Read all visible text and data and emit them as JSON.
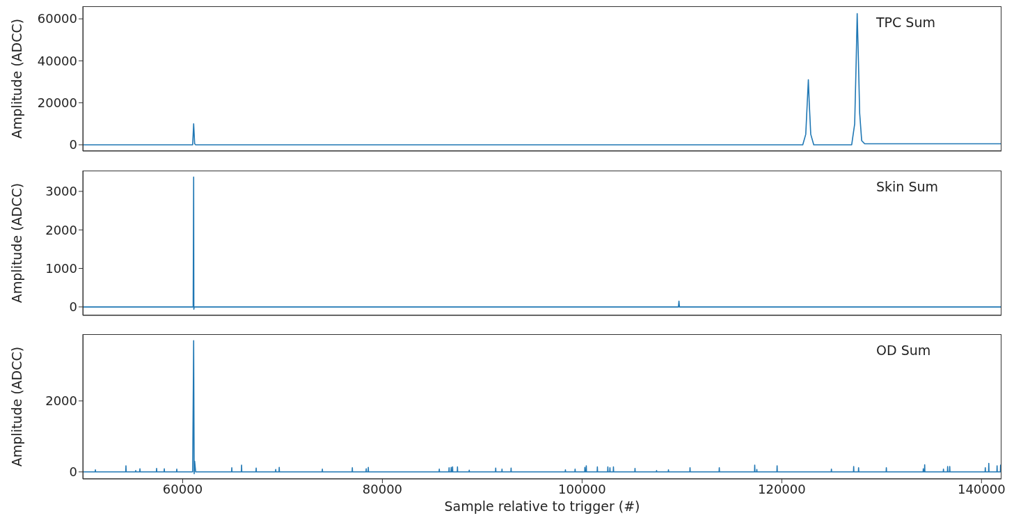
{
  "chart_data": [
    {
      "type": "line",
      "ylabel": "Amplitude (ADCC)",
      "annotations": [
        "TPC Sum"
      ],
      "tick_labels": "y",
      "xlim": [
        50000,
        142000
      ],
      "xticks": [
        60000,
        80000,
        100000,
        120000,
        140000
      ],
      "ylim": [
        -3000,
        66000
      ],
      "yticks": [
        0,
        20000,
        40000,
        60000
      ],
      "grid": false,
      "legend": false,
      "x": [
        50000,
        61000,
        61100,
        61200,
        61300,
        122100,
        122400,
        122550,
        122660,
        122750,
        122900,
        123200,
        127000,
        127300,
        127450,
        127550,
        127650,
        127800,
        128000,
        128300,
        132000,
        136000,
        142000
      ],
      "series": [
        {
          "color": "#1f77b4",
          "values": [
            0,
            0,
            10000,
            500,
            0,
            0,
            5000,
            20000,
            31000,
            20000,
            5000,
            0,
            0,
            10000,
            40000,
            62500,
            45000,
            15000,
            2000,
            500,
            500,
            500,
            500
          ]
        }
      ]
    },
    {
      "type": "line",
      "ylabel": "Amplitude (ADCC)",
      "annotations": [
        "Skin Sum"
      ],
      "tick_labels": "y",
      "xlim": [
        50000,
        142000
      ],
      "xticks": [
        60000,
        80000,
        100000,
        120000,
        140000
      ],
      "ylim": [
        -220,
        3540
      ],
      "yticks": [
        0,
        1000,
        2000,
        3000
      ],
      "grid": false,
      "legend": false,
      "x": [
        50000,
        61050,
        61100,
        61120,
        61150,
        109650,
        109700,
        109750,
        142000
      ],
      "series": [
        {
          "color": "#1f77b4",
          "values": [
            0,
            0,
            3370,
            -60,
            0,
            0,
            150,
            0,
            0
          ]
        }
      ]
    },
    {
      "type": "line",
      "ylabel": "Amplitude (ADCC)",
      "xlabel": "Sample relative to trigger (#)",
      "annotations": [
        "OD Sum"
      ],
      "xlim": [
        50000,
        142000
      ],
      "xticks": [
        60000,
        80000,
        100000,
        120000,
        140000
      ],
      "ylim": [
        -200,
        3880
      ],
      "yticks": [
        0,
        2000
      ],
      "grid": false,
      "legend": false,
      "x": [
        50000,
        51240,
        51260,
        51280,
        54300,
        54320,
        54340,
        55280,
        55300,
        55320,
        55700,
        55720,
        55740,
        57370,
        57390,
        57410,
        58140,
        58160,
        58180,
        59390,
        59410,
        59430,
        61000,
        61100,
        61150,
        61200,
        61300,
        64900,
        64920,
        64940,
        65880,
        65900,
        65920,
        67340,
        67360,
        67380,
        69300,
        69320,
        69340,
        69650,
        69670,
        69690,
        73970,
        73990,
        74010,
        76970,
        76990,
        77010,
        78360,
        78380,
        78400,
        78570,
        78590,
        78610,
        85680,
        85700,
        85720,
        86660,
        86680,
        86700,
        86870,
        86890,
        86910,
        87010,
        87030,
        87050,
        87500,
        87520,
        87540,
        88680,
        88700,
        88720,
        91330,
        91350,
        91370,
        91960,
        91980,
        92000,
        92870,
        92890,
        92910,
        98310,
        98330,
        98350,
        99280,
        99300,
        99320,
        100260,
        100280,
        100300,
        100400,
        100420,
        100440,
        101510,
        101530,
        101550,
        102560,
        102580,
        102600,
        102770,
        102790,
        102810,
        103120,
        103140,
        103160,
        105280,
        105300,
        105320,
        107440,
        107460,
        107480,
        108630,
        108650,
        108670,
        110790,
        110810,
        110830,
        113720,
        113740,
        113760,
        117270,
        117290,
        117310,
        117480,
        117500,
        117520,
        119510,
        119530,
        119550,
        124950,
        124970,
        124990,
        127180,
        127200,
        127220,
        127670,
        127690,
        127710,
        130450,
        130470,
        130490,
        134150,
        134170,
        134190,
        134290,
        134310,
        134330,
        136170,
        136190,
        136210,
        136590,
        136610,
        136630,
        136800,
        136820,
        136840,
        140360,
        140380,
        140400,
        140710,
        140730,
        140750,
        141540,
        141560,
        141580,
        141890,
        141910,
        141930,
        142000
      ],
      "series": [
        {
          "color": "#1f77b4",
          "values": [
            0,
            0,
            60,
            0,
            0,
            170,
            0,
            0,
            40,
            0,
            0,
            90,
            0,
            0,
            100,
            0,
            0,
            90,
            0,
            0,
            80,
            0,
            0,
            3700,
            -50,
            300,
            0,
            0,
            120,
            0,
            0,
            190,
            0,
            0,
            110,
            0,
            0,
            70,
            0,
            0,
            130,
            0,
            0,
            80,
            0,
            0,
            120,
            0,
            0,
            90,
            0,
            0,
            130,
            0,
            0,
            80,
            0,
            0,
            120,
            0,
            0,
            130,
            0,
            0,
            140,
            0,
            0,
            140,
            0,
            0,
            50,
            0,
            0,
            110,
            0,
            0,
            80,
            0,
            0,
            110,
            0,
            0,
            60,
            0,
            0,
            80,
            0,
            0,
            130,
            0,
            0,
            170,
            0,
            0,
            140,
            0,
            0,
            140,
            0,
            0,
            120,
            0,
            0,
            140,
            0,
            0,
            100,
            0,
            0,
            40,
            0,
            0,
            60,
            0,
            0,
            120,
            0,
            0,
            120,
            0,
            0,
            190,
            0,
            0,
            70,
            0,
            0,
            170,
            0,
            0,
            80,
            0,
            0,
            150,
            0,
            0,
            120,
            0,
            0,
            120,
            0,
            0,
            90,
            0,
            0,
            200,
            0,
            0,
            80,
            0,
            0,
            150,
            0,
            0,
            150,
            0,
            0,
            120,
            0,
            0,
            240,
            0,
            0,
            170,
            0,
            0,
            190,
            0,
            0
          ]
        }
      ]
    }
  ]
}
